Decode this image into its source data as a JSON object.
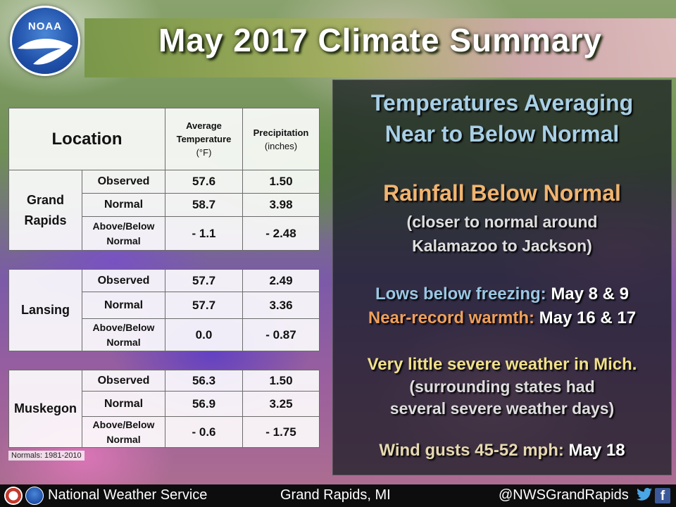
{
  "header": {
    "title": "May 2017 Climate Summary",
    "logo_text": "NOAA"
  },
  "table": {
    "location_header": "Location",
    "col_temp_line1": "Average",
    "col_temp_line2": "Temperature",
    "col_temp_unit": "(°F)",
    "col_precip": "Precipitation",
    "col_precip_unit": "(inches)",
    "row_observed": "Observed",
    "row_normal": "Normal",
    "row_ab_line1": "Above/Below",
    "row_ab_line2": "Normal",
    "locations": [
      {
        "name_line1": "Grand",
        "name_line2": "Rapids",
        "observed_temp": "57.6",
        "observed_precip": "1.50",
        "normal_temp": "58.7",
        "normal_precip": "3.98",
        "diff_temp": "- 1.1",
        "diff_precip": "- 2.48"
      },
      {
        "name_line1": "Lansing",
        "name_line2": "",
        "observed_temp": "57.7",
        "observed_precip": "2.49",
        "normal_temp": "57.7",
        "normal_precip": "3.36",
        "diff_temp": "0.0",
        "diff_precip": "- 0.87"
      },
      {
        "name_line1": "Muskegon",
        "name_line2": "",
        "observed_temp": "56.3",
        "observed_precip": "1.50",
        "normal_temp": "56.9",
        "normal_precip": "3.25",
        "diff_temp": "- 0.6",
        "diff_precip": "- 1.75"
      }
    ],
    "normals_note": "Normals: 1981-2010"
  },
  "summary": {
    "temps_line1": "Temperatures Averaging",
    "temps_line2": "Near to Below Normal",
    "rain_title": "Rainfall Below Normal",
    "rain_note_line1": "(closer to normal around",
    "rain_note_line2": "Kalamazoo to Jackson)",
    "lows_label": "Lows below freezing:",
    "lows_value": "May 8 & 9",
    "warm_label": "Near-record warmth:",
    "warm_value": "May 16 & 17",
    "severe_title": "Very little severe weather in Mich.",
    "severe_note_line1": "(surrounding states had",
    "severe_note_line2": "several severe weather days)",
    "wind_label": "Wind gusts 45-52 mph:",
    "wind_value": "May 18"
  },
  "footer": {
    "agency": "National Weather Service",
    "office": "Grand Rapids, MI",
    "handle": "@NWSGrandRapids",
    "facebook_glyph": "f"
  },
  "colors": {
    "temp_negative": "#2e86c1",
    "precip_negative": "#9c5a24",
    "temps_heading": "#a8cfe6",
    "rain_heading": "#f0b470",
    "severe_heading": "#f0e08a"
  },
  "icons": [
    "noaa-logo-icon",
    "nws-logo-icon",
    "twitter-icon",
    "facebook-icon"
  ]
}
